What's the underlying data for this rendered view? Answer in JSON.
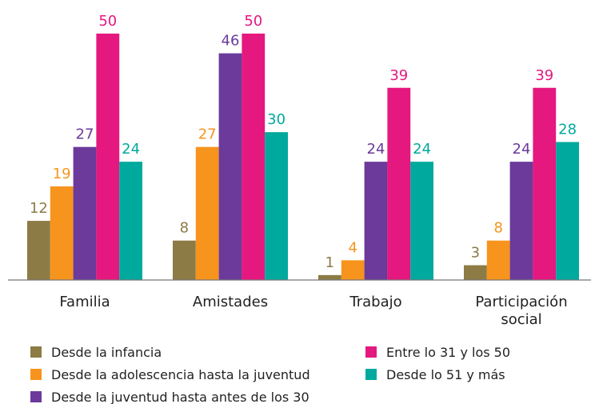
{
  "chart_data": {
    "type": "bar",
    "categories": [
      "Familia",
      "Amistades",
      "Trabajo",
      "Participación social"
    ],
    "series": [
      {
        "name": "Desde la infancia",
        "color": "#8c7b45",
        "values": [
          12,
          8,
          1,
          3
        ]
      },
      {
        "name": "Desde la adolescencia hasta la juventud",
        "color": "#f7941d",
        "values": [
          19,
          27,
          4,
          8
        ]
      },
      {
        "name": "Desde la juventud hasta antes de los 30",
        "color": "#6b3a9b",
        "values": [
          27,
          46,
          24,
          24
        ]
      },
      {
        "name": "Entre lo 31 y los 50",
        "color": "#e5187f",
        "values": [
          50,
          50,
          39,
          39
        ]
      },
      {
        "name": "Desde lo 51 y más",
        "color": "#00a99d",
        "values": [
          24,
          30,
          24,
          28
        ]
      }
    ],
    "ylim": [
      0,
      50
    ]
  }
}
